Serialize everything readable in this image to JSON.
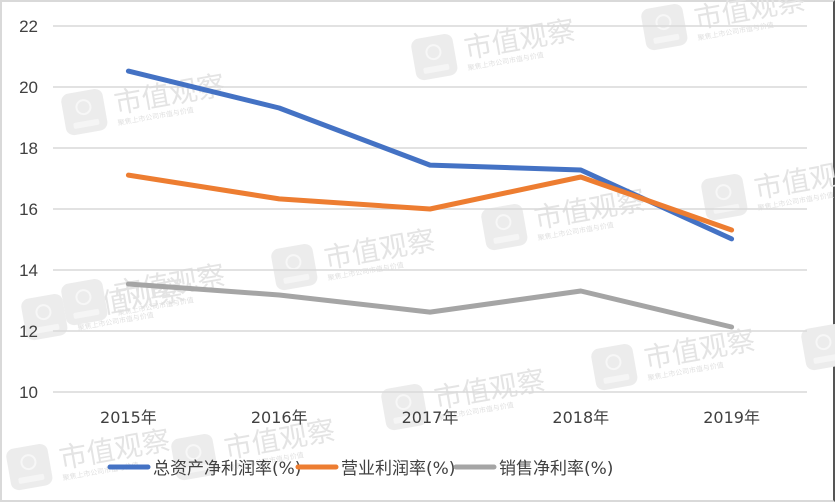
{
  "chart_data": {
    "type": "line",
    "title": "",
    "xlabel": "",
    "ylabel": "",
    "categories": [
      "2015年",
      "2016年",
      "2017年",
      "2018年",
      "2019年"
    ],
    "series": [
      {
        "name": "总资产净利润率(%)",
        "color": "#4472C4",
        "values": [
          20.52,
          19.31,
          17.44,
          17.28,
          15.02
        ]
      },
      {
        "name": "营业利润率(%)",
        "color": "#ED7D31",
        "values": [
          17.11,
          16.33,
          16.0,
          17.05,
          15.31
        ]
      },
      {
        "name": "销售净利率(%)",
        "color": "#A5A5A5",
        "values": [
          13.54,
          13.18,
          12.62,
          13.31,
          12.13
        ]
      }
    ],
    "ylim": [
      10,
      22
    ],
    "yticks": [
      "10",
      "12",
      "14",
      "16",
      "18",
      "20",
      "22"
    ],
    "grid": true,
    "legend_position": "bottom"
  },
  "watermark": {
    "title": "市值观察",
    "subtitle": "聚焦上市公司市值与价值"
  }
}
